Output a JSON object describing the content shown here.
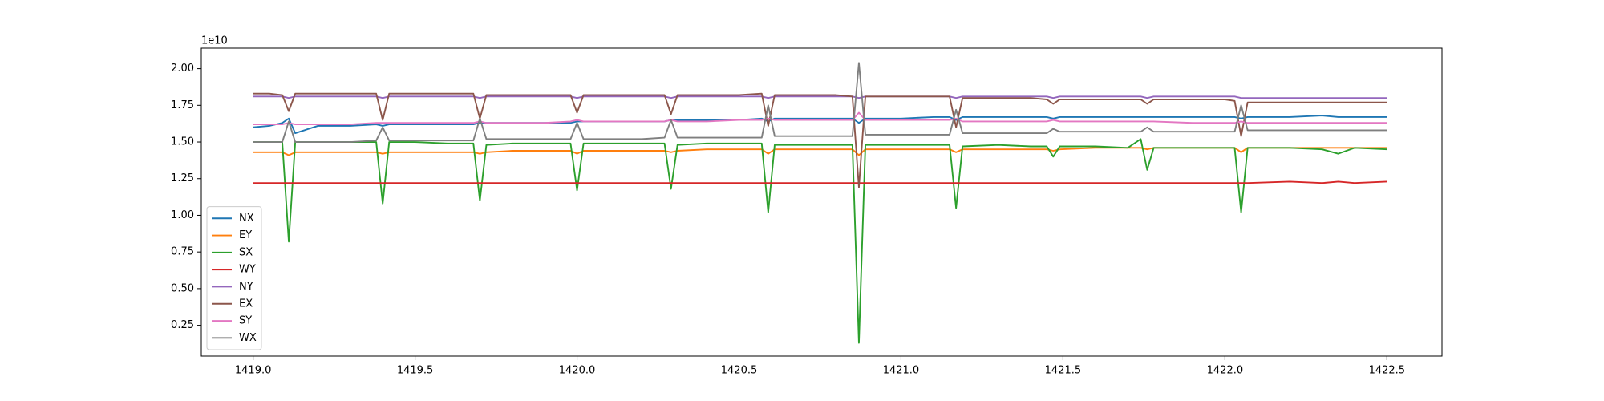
{
  "chart_data": {
    "type": "line",
    "y_offset_label": "1e10",
    "x": [
      1419.0,
      1419.05,
      1419.09,
      1419.11,
      1419.13,
      1419.2,
      1419.3,
      1419.38,
      1419.4,
      1419.42,
      1419.5,
      1419.6,
      1419.68,
      1419.7,
      1419.72,
      1419.8,
      1419.9,
      1419.98,
      1420.0,
      1420.02,
      1420.1,
      1420.2,
      1420.27,
      1420.29,
      1420.31,
      1420.4,
      1420.5,
      1420.57,
      1420.59,
      1420.61,
      1420.7,
      1420.8,
      1420.85,
      1420.87,
      1420.89,
      1421.0,
      1421.1,
      1421.15,
      1421.17,
      1421.19,
      1421.3,
      1421.4,
      1421.45,
      1421.47,
      1421.49,
      1421.6,
      1421.7,
      1421.74,
      1421.76,
      1421.78,
      1421.9,
      1422.0,
      1422.03,
      1422.05,
      1422.07,
      1422.2,
      1422.3,
      1422.35,
      1422.4,
      1422.5
    ],
    "series": [
      {
        "name": "NX",
        "color": "#1f77b4",
        "values": [
          1.6,
          1.61,
          1.63,
          1.66,
          1.56,
          1.61,
          1.61,
          1.62,
          1.61,
          1.62,
          1.62,
          1.62,
          1.62,
          1.63,
          1.63,
          1.63,
          1.63,
          1.63,
          1.64,
          1.64,
          1.64,
          1.64,
          1.64,
          1.65,
          1.65,
          1.65,
          1.65,
          1.66,
          1.64,
          1.66,
          1.66,
          1.66,
          1.66,
          1.63,
          1.66,
          1.66,
          1.67,
          1.67,
          1.65,
          1.67,
          1.67,
          1.67,
          1.67,
          1.66,
          1.67,
          1.67,
          1.67,
          1.67,
          1.67,
          1.67,
          1.67,
          1.67,
          1.67,
          1.66,
          1.67,
          1.67,
          1.68,
          1.67,
          1.67,
          1.67
        ]
      },
      {
        "name": "EY",
        "color": "#ff7f0e",
        "values": [
          1.43,
          1.43,
          1.43,
          1.41,
          1.43,
          1.43,
          1.43,
          1.43,
          1.42,
          1.43,
          1.43,
          1.43,
          1.43,
          1.42,
          1.43,
          1.44,
          1.44,
          1.44,
          1.42,
          1.44,
          1.44,
          1.44,
          1.44,
          1.43,
          1.44,
          1.45,
          1.45,
          1.45,
          1.42,
          1.45,
          1.45,
          1.45,
          1.45,
          1.41,
          1.45,
          1.45,
          1.45,
          1.45,
          1.43,
          1.45,
          1.45,
          1.45,
          1.45,
          1.44,
          1.45,
          1.46,
          1.46,
          1.46,
          1.45,
          1.46,
          1.46,
          1.46,
          1.46,
          1.43,
          1.46,
          1.46,
          1.46,
          1.46,
          1.46,
          1.46
        ]
      },
      {
        "name": "SX",
        "color": "#2ca02c",
        "values": [
          1.5,
          1.5,
          1.5,
          0.82,
          1.5,
          1.5,
          1.5,
          1.5,
          1.08,
          1.5,
          1.5,
          1.49,
          1.49,
          1.1,
          1.48,
          1.49,
          1.49,
          1.49,
          1.17,
          1.49,
          1.49,
          1.49,
          1.49,
          1.18,
          1.48,
          1.49,
          1.49,
          1.49,
          1.02,
          1.48,
          1.48,
          1.48,
          1.48,
          0.13,
          1.48,
          1.48,
          1.48,
          1.48,
          1.05,
          1.47,
          1.48,
          1.47,
          1.47,
          1.4,
          1.47,
          1.47,
          1.46,
          1.52,
          1.31,
          1.46,
          1.46,
          1.46,
          1.46,
          1.02,
          1.46,
          1.46,
          1.45,
          1.42,
          1.46,
          1.45
        ]
      },
      {
        "name": "WY",
        "color": "#d62728",
        "values": [
          1.22,
          1.22,
          1.22,
          1.22,
          1.22,
          1.22,
          1.22,
          1.22,
          1.22,
          1.22,
          1.22,
          1.22,
          1.22,
          1.22,
          1.22,
          1.22,
          1.22,
          1.22,
          1.22,
          1.22,
          1.22,
          1.22,
          1.22,
          1.22,
          1.22,
          1.22,
          1.22,
          1.22,
          1.22,
          1.22,
          1.22,
          1.22,
          1.22,
          1.22,
          1.22,
          1.22,
          1.22,
          1.22,
          1.22,
          1.22,
          1.22,
          1.22,
          1.22,
          1.22,
          1.22,
          1.22,
          1.22,
          1.22,
          1.22,
          1.22,
          1.22,
          1.22,
          1.22,
          1.22,
          1.22,
          1.23,
          1.22,
          1.23,
          1.22,
          1.23
        ]
      },
      {
        "name": "NY",
        "color": "#9467bd",
        "values": [
          1.81,
          1.81,
          1.81,
          1.8,
          1.81,
          1.81,
          1.81,
          1.81,
          1.8,
          1.81,
          1.81,
          1.81,
          1.81,
          1.8,
          1.81,
          1.81,
          1.81,
          1.81,
          1.8,
          1.81,
          1.81,
          1.81,
          1.81,
          1.8,
          1.81,
          1.81,
          1.81,
          1.81,
          1.8,
          1.81,
          1.81,
          1.81,
          1.81,
          1.8,
          1.81,
          1.81,
          1.81,
          1.81,
          1.8,
          1.81,
          1.81,
          1.81,
          1.81,
          1.8,
          1.81,
          1.81,
          1.81,
          1.81,
          1.8,
          1.81,
          1.81,
          1.81,
          1.81,
          1.8,
          1.8,
          1.8,
          1.8,
          1.8,
          1.8,
          1.8
        ]
      },
      {
        "name": "EX",
        "color": "#8c564b",
        "values": [
          1.83,
          1.83,
          1.82,
          1.71,
          1.83,
          1.83,
          1.83,
          1.83,
          1.65,
          1.83,
          1.83,
          1.83,
          1.83,
          1.66,
          1.82,
          1.82,
          1.82,
          1.82,
          1.7,
          1.82,
          1.82,
          1.82,
          1.82,
          1.69,
          1.82,
          1.82,
          1.82,
          1.83,
          1.61,
          1.82,
          1.82,
          1.82,
          1.81,
          1.19,
          1.81,
          1.81,
          1.81,
          1.81,
          1.6,
          1.8,
          1.8,
          1.8,
          1.79,
          1.76,
          1.79,
          1.79,
          1.79,
          1.79,
          1.76,
          1.79,
          1.79,
          1.79,
          1.78,
          1.54,
          1.77,
          1.77,
          1.77,
          1.77,
          1.77,
          1.77
        ]
      },
      {
        "name": "SY",
        "color": "#e377c2",
        "values": [
          1.62,
          1.62,
          1.62,
          1.63,
          1.62,
          1.62,
          1.62,
          1.63,
          1.63,
          1.63,
          1.63,
          1.63,
          1.63,
          1.64,
          1.63,
          1.63,
          1.63,
          1.64,
          1.65,
          1.64,
          1.64,
          1.64,
          1.64,
          1.65,
          1.64,
          1.64,
          1.65,
          1.65,
          1.66,
          1.65,
          1.65,
          1.65,
          1.65,
          1.7,
          1.65,
          1.65,
          1.65,
          1.65,
          1.66,
          1.64,
          1.64,
          1.64,
          1.64,
          1.65,
          1.64,
          1.64,
          1.64,
          1.64,
          1.64,
          1.64,
          1.63,
          1.63,
          1.63,
          1.64,
          1.63,
          1.63,
          1.63,
          1.63,
          1.63,
          1.63
        ]
      },
      {
        "name": "WX",
        "color": "#7f7f7f",
        "values": [
          1.5,
          1.5,
          1.5,
          1.64,
          1.5,
          1.5,
          1.5,
          1.51,
          1.6,
          1.51,
          1.51,
          1.51,
          1.51,
          1.66,
          1.52,
          1.52,
          1.52,
          1.52,
          1.63,
          1.52,
          1.52,
          1.52,
          1.53,
          1.65,
          1.53,
          1.53,
          1.53,
          1.53,
          1.75,
          1.54,
          1.54,
          1.54,
          1.54,
          2.04,
          1.55,
          1.55,
          1.55,
          1.55,
          1.72,
          1.56,
          1.56,
          1.56,
          1.56,
          1.59,
          1.57,
          1.57,
          1.57,
          1.57,
          1.6,
          1.57,
          1.57,
          1.57,
          1.57,
          1.75,
          1.58,
          1.58,
          1.58,
          1.58,
          1.58,
          1.58
        ]
      }
    ],
    "xlim": [
      1418.84,
      1422.67
    ],
    "ylim": [
      0.04,
      2.14
    ],
    "xticks": [
      {
        "value": 1419,
        "label": "1419.0"
      },
      1419.5,
      {
        "value": 1420,
        "label": "1420.0"
      },
      1420.5,
      {
        "value": 1421,
        "label": "1421.0"
      },
      1421.5,
      {
        "value": 1422,
        "label": "1422.0"
      },
      1422.5
    ],
    "yticks": [
      {
        "value": 0.25,
        "label": "0.25"
      },
      {
        "value": 0.5,
        "label": "0.50"
      },
      {
        "value": 0.75,
        "label": "0.75"
      },
      {
        "value": 1,
        "label": "1.00"
      },
      {
        "value": 1.25,
        "label": "1.25"
      },
      {
        "value": 1.5,
        "label": "1.50"
      },
      {
        "value": 1.75,
        "label": "1.75"
      },
      {
        "value": 2,
        "label": "2.00"
      }
    ],
    "legend": "lower left"
  }
}
